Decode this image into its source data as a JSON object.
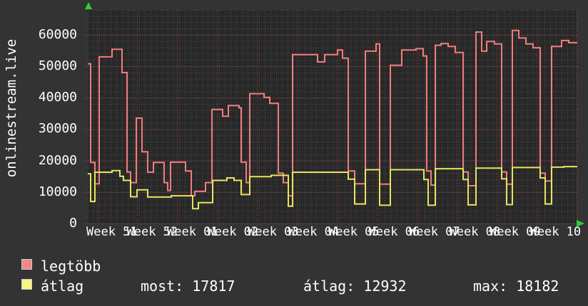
{
  "chart_data": {
    "type": "line",
    "title_vertical": "onlinestream.live",
    "ylabel": "onlinestream.live",
    "xlabel": "",
    "ylim": [
      0,
      67900
    ],
    "grid": "dotted, minor every 2000 y / 1 day x, major red every 10000 y / 1 week x",
    "legend_position": "bottom-left",
    "y_ticks": [
      0,
      10000,
      20000,
      30000,
      40000,
      50000,
      60000
    ],
    "y_tick_labels": [
      "0",
      "10000",
      "20000",
      "30000",
      "40000",
      "50000",
      "60000"
    ],
    "x_tick_labels": [
      "Week 51",
      "Week 52",
      "Week 01",
      "Week 02",
      "Week 03",
      "Week 04",
      "Week 05",
      "Week 06",
      "Week 07",
      "Week 08",
      "Week 09",
      "Week 10"
    ],
    "series": [
      {
        "name": "legtöbb",
        "color": "#f17d7d",
        "points": [
          [
            123,
            50800
          ],
          [
            127,
            19400
          ],
          [
            133,
            12600
          ],
          [
            139,
            53000
          ],
          [
            157,
            55400
          ],
          [
            171,
            48000
          ],
          [
            178,
            16400
          ],
          [
            183,
            13000
          ],
          [
            191,
            33500
          ],
          [
            199,
            22800
          ],
          [
            207,
            16300
          ],
          [
            215,
            19400
          ],
          [
            230,
            13000
          ],
          [
            235,
            10500
          ],
          [
            239,
            19500
          ],
          [
            260,
            16700
          ],
          [
            268,
            8800
          ],
          [
            273,
            10200
          ],
          [
            288,
            13000
          ],
          [
            297,
            36300
          ],
          [
            312,
            34100
          ],
          [
            320,
            37500
          ],
          [
            335,
            36800
          ],
          [
            338,
            19500
          ],
          [
            345,
            13000
          ],
          [
            350,
            41300
          ],
          [
            370,
            40100
          ],
          [
            378,
            38200
          ],
          [
            390,
            16000
          ],
          [
            397,
            13000
          ],
          [
            404,
            8800
          ],
          [
            410,
            53700
          ],
          [
            445,
            51400
          ],
          [
            455,
            53700
          ],
          [
            473,
            55200
          ],
          [
            480,
            52600
          ],
          [
            488,
            16700
          ],
          [
            497,
            12600
          ],
          [
            512,
            54800
          ],
          [
            527,
            57100
          ],
          [
            532,
            12500
          ],
          [
            547,
            50300
          ],
          [
            563,
            55200
          ],
          [
            583,
            55600
          ],
          [
            593,
            53300
          ],
          [
            598,
            16700
          ],
          [
            604,
            12200
          ],
          [
            610,
            56700
          ],
          [
            618,
            57200
          ],
          [
            628,
            56300
          ],
          [
            638,
            54400
          ],
          [
            649,
            16400
          ],
          [
            656,
            12000
          ],
          [
            667,
            60900
          ],
          [
            675,
            54800
          ],
          [
            682,
            57900
          ],
          [
            693,
            57100
          ],
          [
            703,
            16400
          ],
          [
            710,
            12500
          ],
          [
            718,
            61400
          ],
          [
            727,
            59000
          ],
          [
            737,
            57100
          ],
          [
            747,
            55900
          ],
          [
            757,
            16000
          ],
          [
            764,
            13500
          ],
          [
            773,
            56300
          ],
          [
            787,
            58200
          ],
          [
            797,
            57500
          ]
        ]
      },
      {
        "name": "átlag",
        "color": "#e9e45f",
        "points": [
          [
            123,
            15800
          ],
          [
            127,
            7000
          ],
          [
            133,
            16300
          ],
          [
            157,
            16800
          ],
          [
            168,
            15000
          ],
          [
            173,
            13700
          ],
          [
            183,
            8500
          ],
          [
            192,
            10700
          ],
          [
            207,
            8400
          ],
          [
            240,
            8800
          ],
          [
            270,
            4700
          ],
          [
            278,
            6600
          ],
          [
            298,
            13700
          ],
          [
            318,
            14500
          ],
          [
            328,
            13700
          ],
          [
            338,
            9200
          ],
          [
            350,
            14900
          ],
          [
            380,
            15300
          ],
          [
            404,
            5500
          ],
          [
            410,
            16300
          ],
          [
            488,
            14100
          ],
          [
            497,
            6200
          ],
          [
            512,
            17100
          ],
          [
            532,
            5800
          ],
          [
            547,
            17100
          ],
          [
            594,
            14000
          ],
          [
            600,
            5800
          ],
          [
            610,
            17400
          ],
          [
            649,
            14000
          ],
          [
            656,
            5900
          ],
          [
            667,
            17600
          ],
          [
            703,
            14200
          ],
          [
            710,
            6000
          ],
          [
            718,
            17800
          ],
          [
            757,
            14500
          ],
          [
            764,
            6200
          ],
          [
            773,
            17900
          ],
          [
            790,
            18100
          ]
        ]
      }
    ],
    "colors": {
      "page_bg": "#333333",
      "plot_bg": "#282828",
      "minor_grid": "#4d4d4d",
      "major_grid": "#9e4343",
      "arrow_green": "#2ed02e",
      "text": "#ffffff"
    }
  },
  "legend": {
    "items": [
      {
        "label": "legtöbb",
        "swatch": "#f18989"
      },
      {
        "label": "átlag",
        "swatch": "#f5f584"
      }
    ]
  },
  "stats": {
    "most": "most: 17817",
    "atlag": "átlag: 12932",
    "max": "max: 18182"
  }
}
